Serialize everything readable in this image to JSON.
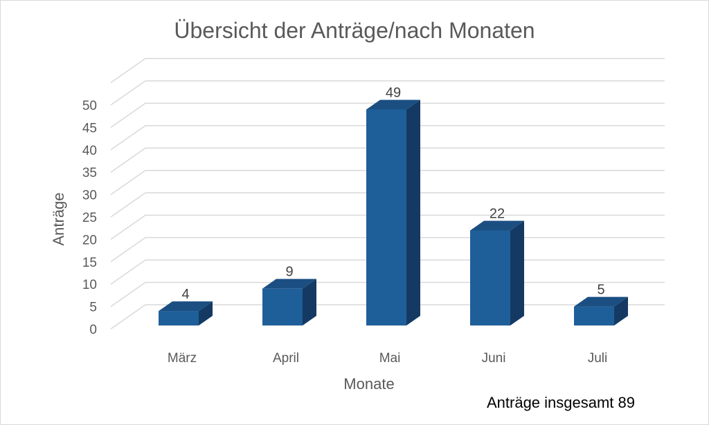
{
  "chart_data": {
    "type": "bar",
    "title": "Übersicht der Anträge/nach Monaten",
    "xlabel": "Monate",
    "ylabel": "Anträge",
    "categories": [
      "März",
      "April",
      "Mai",
      "Juni",
      "Juli"
    ],
    "values": [
      4,
      9,
      49,
      22,
      5
    ],
    "ylim": [
      0,
      50
    ],
    "yticks": [
      0,
      5,
      10,
      15,
      20,
      25,
      30,
      35,
      40,
      45,
      50
    ],
    "grid": true,
    "legend": "none",
    "style": "3d-column",
    "colors": {
      "front": "#1f5f99",
      "side": "#143a63",
      "top": "#1b4f82",
      "grid": "#d9d9d9"
    }
  },
  "note": "Anträge insgesamt 89"
}
